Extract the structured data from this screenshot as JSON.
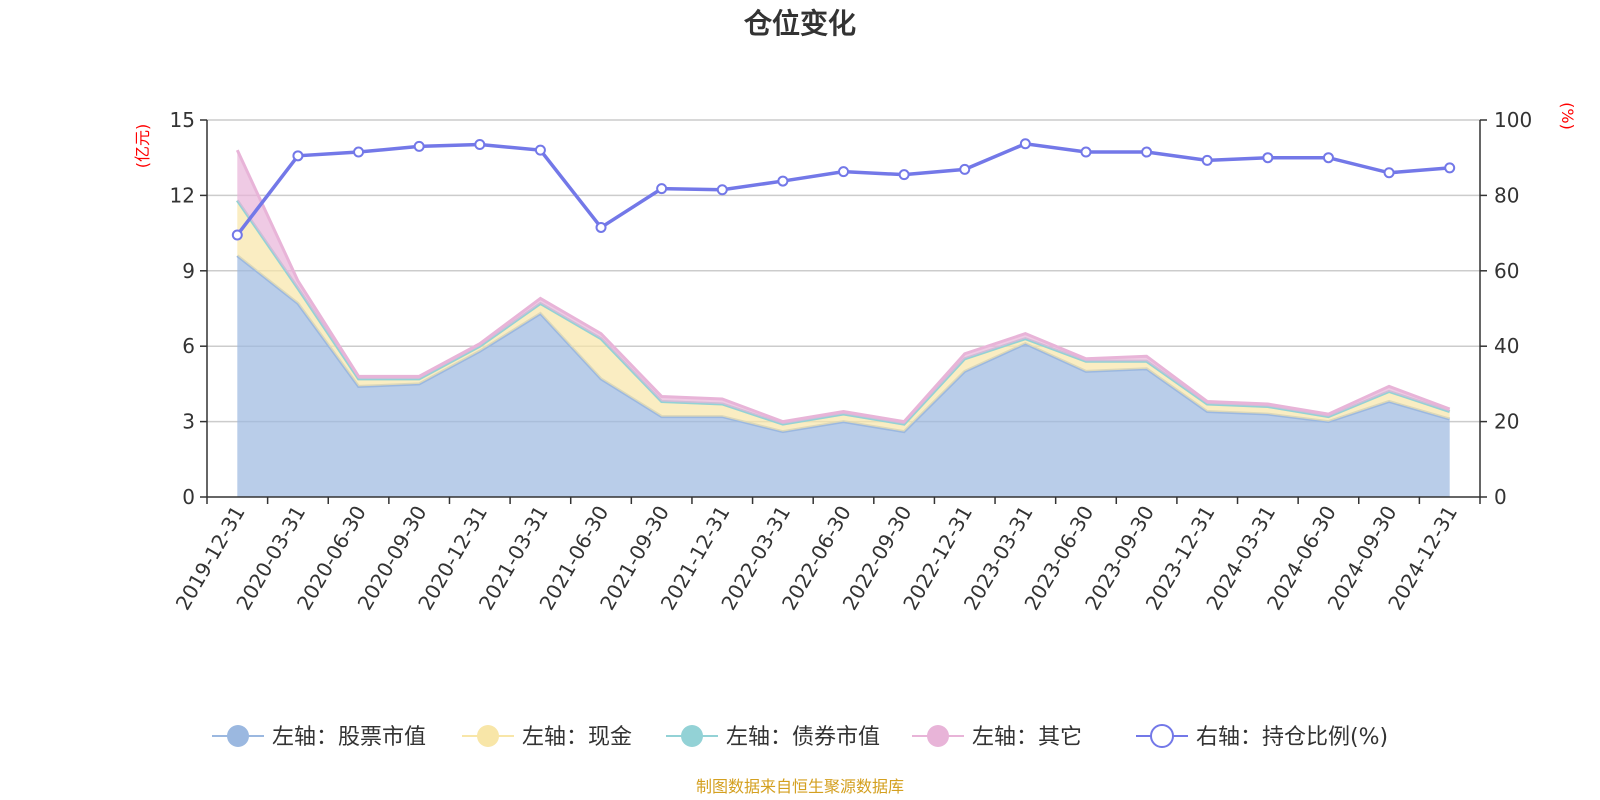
{
  "chart_data": {
    "type": "area",
    "title": "仓位变化",
    "left_axis": {
      "unit": "(亿元)",
      "ylim": [
        0,
        15
      ],
      "ticks": [
        0,
        3,
        6,
        9,
        12,
        15
      ]
    },
    "right_axis": {
      "unit": "(%)",
      "ylim": [
        0,
        100
      ],
      "ticks": [
        0,
        20,
        40,
        60,
        80,
        100
      ]
    },
    "grid": true,
    "legend_position": "bottom",
    "categories": [
      "2019-12-31",
      "2020-03-31",
      "2020-06-30",
      "2020-09-30",
      "2020-12-31",
      "2021-03-31",
      "2021-06-30",
      "2021-09-30",
      "2021-12-31",
      "2022-03-31",
      "2022-06-30",
      "2022-09-30",
      "2022-12-31",
      "2023-03-31",
      "2023-06-30",
      "2023-09-30",
      "2023-12-31",
      "2024-03-31",
      "2024-06-30",
      "2024-09-30",
      "2024-12-31"
    ],
    "series": [
      {
        "name": "左轴：股票市值",
        "axis": "left",
        "color": "#9bb8e0",
        "values": [
          9.6,
          7.7,
          4.4,
          4.5,
          5.8,
          7.3,
          4.7,
          3.2,
          3.2,
          2.6,
          3.0,
          2.6,
          5.0,
          6.1,
          5.0,
          5.1,
          3.4,
          3.3,
          3.0,
          3.8,
          3.1
        ]
      },
      {
        "name": "左轴：现金",
        "axis": "left",
        "color": "#f8e6a8",
        "values": [
          2.2,
          0.6,
          0.3,
          0.2,
          0.2,
          0.4,
          1.6,
          0.6,
          0.5,
          0.3,
          0.3,
          0.3,
          0.5,
          0.2,
          0.4,
          0.3,
          0.3,
          0.3,
          0.2,
          0.4,
          0.3
        ]
      },
      {
        "name": "左轴：债券市值",
        "axis": "left",
        "color": "#93d2d6",
        "values": [
          0,
          0,
          0,
          0,
          0,
          0,
          0,
          0,
          0,
          0,
          0,
          0,
          0,
          0,
          0,
          0,
          0,
          0,
          0,
          0,
          0
        ]
      },
      {
        "name": "左轴：其它",
        "axis": "left",
        "color": "#e8b4d8",
        "values": [
          2.0,
          0.3,
          0.1,
          0.1,
          0.1,
          0.2,
          0.2,
          0.2,
          0.2,
          0.1,
          0.1,
          0.1,
          0.2,
          0.2,
          0.1,
          0.2,
          0.1,
          0.1,
          0.1,
          0.2,
          0.1
        ]
      },
      {
        "name": "右轴：持仓比例(%)",
        "axis": "right",
        "color": "#7378e8",
        "type": "line",
        "values": [
          69.5,
          90.5,
          91.5,
          93.0,
          93.5,
          92.0,
          71.5,
          81.8,
          81.5,
          83.8,
          86.3,
          85.5,
          86.9,
          93.7,
          91.5,
          91.5,
          89.3,
          90.0,
          90.0,
          86.0,
          87.3
        ]
      }
    ]
  },
  "source": "制图数据来自恒生聚源数据库"
}
